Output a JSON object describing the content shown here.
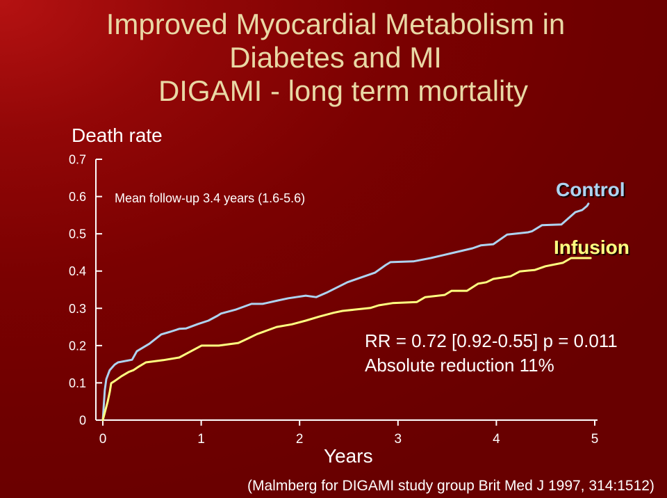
{
  "slide": {
    "title_lines": [
      "Improved Myocardial Metabolism in",
      "Diabetes and MI"
    ],
    "citation": "(Malmberg for DIGAMI study group Brit Med J 1997, 314:1512)"
  },
  "chart_data": {
    "type": "line",
    "title": "DIGAMI - long term mortality",
    "ylabel": "Death rate",
    "xlabel": "Years",
    "xlim": [
      0,
      5
    ],
    "ylim": [
      0,
      0.7
    ],
    "x_ticks": [
      "0",
      "1",
      "2",
      "3",
      "4",
      "5"
    ],
    "y_ticks": [
      "0.7",
      "0.6",
      "0.5",
      "0.4",
      "0.3",
      "0.2",
      "0.1",
      "0"
    ],
    "grid": false,
    "legend": "right",
    "series": [
      {
        "name": "Control",
        "color": "#aed3f0",
        "points": [
          [
            0,
            0
          ],
          [
            0.02,
            0.08
          ],
          [
            0.035,
            0.11
          ],
          [
            0.07,
            0.134
          ],
          [
            0.12,
            0.149
          ],
          [
            0.155,
            0.155
          ],
          [
            0.297,
            0.162
          ],
          [
            0.346,
            0.185
          ],
          [
            0.473,
            0.205
          ],
          [
            0.593,
            0.23
          ],
          [
            0.685,
            0.237
          ],
          [
            0.777,
            0.245
          ],
          [
            0.847,
            0.246
          ],
          [
            0.968,
            0.258
          ],
          [
            1.073,
            0.267
          ],
          [
            1.165,
            0.28
          ],
          [
            1.201,
            0.286
          ],
          [
            1.356,
            0.297
          ],
          [
            1.511,
            0.312
          ],
          [
            1.624,
            0.312
          ],
          [
            1.78,
            0.321
          ],
          [
            1.886,
            0.327
          ],
          [
            2.062,
            0.334
          ],
          [
            2.168,
            0.33
          ],
          [
            2.274,
            0.342
          ],
          [
            2.486,
            0.37
          ],
          [
            2.627,
            0.383
          ],
          [
            2.768,
            0.396
          ],
          [
            2.874,
            0.416
          ],
          [
            2.924,
            0.424
          ],
          [
            3.157,
            0.426
          ],
          [
            3.333,
            0.435
          ],
          [
            3.545,
            0.448
          ],
          [
            3.757,
            0.461
          ],
          [
            3.842,
            0.469
          ],
          [
            3.969,
            0.472
          ],
          [
            4.11,
            0.498
          ],
          [
            4.322,
            0.504
          ],
          [
            4.364,
            0.507
          ],
          [
            4.463,
            0.523
          ],
          [
            4.661,
            0.525
          ],
          [
            4.802,
            0.558
          ],
          [
            4.873,
            0.564
          ],
          [
            4.922,
            0.575
          ],
          [
            4.936,
            0.581
          ]
        ]
      },
      {
        "name": "Infusion",
        "color": "#ffff80",
        "points": [
          [
            0,
            0
          ],
          [
            0.049,
            0.049
          ],
          [
            0.071,
            0.077
          ],
          [
            0.085,
            0.099
          ],
          [
            0.12,
            0.105
          ],
          [
            0.191,
            0.118
          ],
          [
            0.261,
            0.129
          ],
          [
            0.311,
            0.134
          ],
          [
            0.367,
            0.144
          ],
          [
            0.438,
            0.155
          ],
          [
            0.614,
            0.161
          ],
          [
            0.777,
            0.168
          ],
          [
            0.897,
            0.185
          ],
          [
            1.003,
            0.2
          ],
          [
            1.179,
            0.2
          ],
          [
            1.377,
            0.207
          ],
          [
            1.483,
            0.22
          ],
          [
            1.568,
            0.231
          ],
          [
            1.674,
            0.241
          ],
          [
            1.766,
            0.25
          ],
          [
            1.921,
            0.257
          ],
          [
            2.062,
            0.267
          ],
          [
            2.203,
            0.278
          ],
          [
            2.345,
            0.288
          ],
          [
            2.436,
            0.293
          ],
          [
            2.719,
            0.301
          ],
          [
            2.804,
            0.308
          ],
          [
            2.945,
            0.314
          ],
          [
            3.192,
            0.317
          ],
          [
            3.277,
            0.33
          ],
          [
            3.475,
            0.336
          ],
          [
            3.545,
            0.347
          ],
          [
            3.701,
            0.347
          ],
          [
            3.814,
            0.366
          ],
          [
            3.898,
            0.37
          ],
          [
            3.969,
            0.379
          ],
          [
            4.145,
            0.386
          ],
          [
            4.237,
            0.399
          ],
          [
            4.393,
            0.403
          ],
          [
            4.499,
            0.413
          ],
          [
            4.675,
            0.422
          ],
          [
            4.76,
            0.435
          ],
          [
            4.958,
            0.435
          ]
        ]
      }
    ],
    "annotations": {
      "follow_up": "Mean follow-up 3.4 years (1.6-5.6)",
      "rr": "RR = 0.72 [0.92-0.55] p = 0.011",
      "absolute_reduction": "Absolute reduction 11%"
    }
  }
}
